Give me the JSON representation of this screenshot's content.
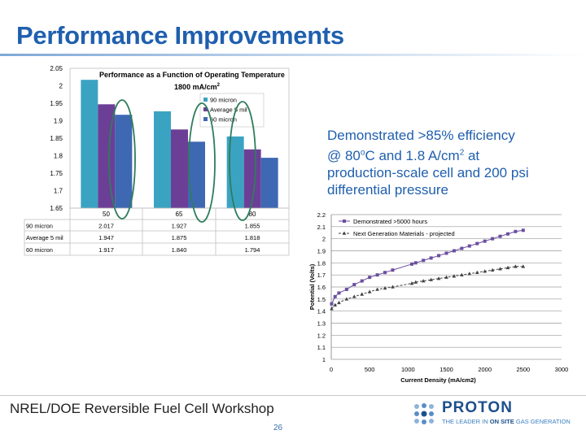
{
  "slide": {
    "title": "Performance Improvements",
    "highlight": {
      "line1": "Demonstrated >85% efficiency",
      "line2_pre": "@ 80",
      "line2_deg": "o",
      "line2_mid": "C and 1.8 A/cm",
      "line2_sup": "2",
      "line2_post": " at",
      "line3": "production-scale cell and 200 psi",
      "line4": "differential pressure"
    },
    "footer": "NREL/DOE Reversible Fuel Cell Workshop",
    "page_number": "26",
    "logo": {
      "name": "PROTON",
      "tagline_a": "THE LEADER IN ",
      "tagline_b": "ON SITE",
      "tagline_c": " GAS GENERATION"
    }
  },
  "chart_data": [
    {
      "type": "bar",
      "title": "Performance as a Function of Operating Temperature",
      "subtitle_text": "1800 mA/cm",
      "subtitle_sup": "2",
      "categories": [
        "50",
        "65",
        "80"
      ],
      "series": [
        {
          "name": "90 micron",
          "values": [
            "2.017",
            "1.927",
            "1.855"
          ],
          "color": "#3ba3c2"
        },
        {
          "name": "Average 5 mil",
          "values": [
            "1.947",
            "1.875",
            "1.818"
          ],
          "color": "#6c3f97"
        },
        {
          "name": "60 micron",
          "values": [
            "1.917",
            "1.840",
            "1.794"
          ],
          "color": "#3f68b3"
        }
      ],
      "ylim": [
        1.65,
        2.05
      ],
      "yticks": [
        "1.65",
        "1.7",
        "1.75",
        "1.8",
        "1.85",
        "1.9",
        "1.95",
        "2",
        "2.05"
      ],
      "legend_placement": "right",
      "data_table": true,
      "highlight_ellipses_color": "#2e7d5b"
    },
    {
      "type": "line",
      "xlabel": "Current Density (mA/cm2)",
      "ylabel": "Potential (Volts)",
      "xlim": [
        0,
        3000
      ],
      "ylim": [
        1,
        2.2
      ],
      "xticks": [
        "0",
        "500",
        "1000",
        "1500",
        "2000",
        "2500",
        "3000"
      ],
      "yticks": [
        "1",
        "1.1",
        "1.2",
        "1.3",
        "1.4",
        "1.5",
        "1.6",
        "1.7",
        "1.8",
        "1.9",
        "2",
        "2.1",
        "2.2"
      ],
      "grid": true,
      "legend_placement": "top-left",
      "series": [
        {
          "name": "Demonstrated >5000 hours",
          "color": "#6b4ea0",
          "marker": "square",
          "x": [
            5,
            50,
            100,
            200,
            300,
            400,
            500,
            600,
            700,
            800,
            1050,
            1100,
            1200,
            1300,
            1400,
            1500,
            1600,
            1700,
            1800,
            1900,
            2000,
            2100,
            2200,
            2300,
            2400,
            2500
          ],
          "y": [
            1.46,
            1.52,
            1.55,
            1.58,
            1.62,
            1.65,
            1.68,
            1.7,
            1.72,
            1.74,
            1.79,
            1.8,
            1.82,
            1.84,
            1.86,
            1.88,
            1.9,
            1.92,
            1.94,
            1.96,
            1.98,
            2.0,
            2.02,
            2.04,
            2.06,
            2.07
          ]
        },
        {
          "name": "Next Generation Materials - projected",
          "color": "#444444",
          "marker": "triangle",
          "x": [
            5,
            50,
            100,
            200,
            300,
            400,
            500,
            600,
            700,
            800,
            1050,
            1100,
            1200,
            1300,
            1400,
            1500,
            1600,
            1700,
            1800,
            1900,
            2000,
            2100,
            2200,
            2300,
            2400,
            2500
          ],
          "y": [
            1.42,
            1.45,
            1.47,
            1.5,
            1.52,
            1.54,
            1.56,
            1.58,
            1.59,
            1.6,
            1.63,
            1.64,
            1.65,
            1.66,
            1.67,
            1.68,
            1.69,
            1.7,
            1.71,
            1.72,
            1.73,
            1.74,
            1.75,
            1.76,
            1.77,
            1.77
          ]
        }
      ]
    }
  ]
}
